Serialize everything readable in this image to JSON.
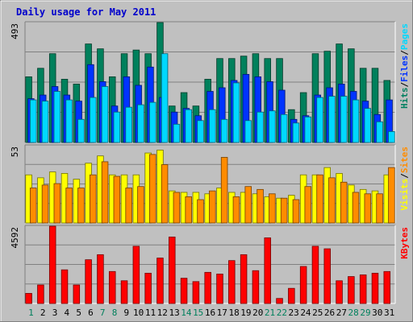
{
  "chart_data": {
    "type": "bar",
    "title": "Daily usage for May 2011",
    "categories": [
      "1",
      "2",
      "3",
      "4",
      "5",
      "6",
      "7",
      "8",
      "9",
      "10",
      "11",
      "12",
      "13",
      "14",
      "15",
      "16",
      "17",
      "18",
      "19",
      "20",
      "21",
      "22",
      "23",
      "24",
      "25",
      "26",
      "27",
      "28",
      "29",
      "30",
      "31"
    ],
    "weekend_days": [
      1,
      7,
      8,
      14,
      15,
      21,
      22,
      28,
      29
    ],
    "panels": [
      {
        "name": "top",
        "max_label": "493",
        "ylim": [
          0,
          493
        ],
        "axis_label_parts": [
          "Pages",
          "/",
          "Files",
          "/",
          "Hits"
        ],
        "axis_label_colors": [
          "#00d8ff",
          "#000000",
          "#0033ff",
          "#000000",
          "#008060"
        ],
        "series": [
          {
            "name": "Hits",
            "color": "#00805c",
            "values": [
              270,
              305,
              365,
              260,
              240,
              405,
              385,
              270,
              365,
              380,
              365,
              493,
              150,
              205,
              150,
              260,
              345,
              345,
              355,
              365,
              345,
              345,
              135,
              205,
              365,
              375,
              405,
              385,
              305,
              305,
              255
            ]
          },
          {
            "name": "Files",
            "color": "#0033ff",
            "values": [
              180,
              195,
              230,
              195,
              170,
              320,
              250,
              150,
              270,
              235,
              310,
              185,
              125,
              140,
              110,
              210,
              225,
              255,
              280,
              270,
              250,
              215,
              95,
              110,
              195,
              225,
              240,
              210,
              170,
              115,
              175
            ]
          },
          {
            "name": "Pages",
            "color": "#00d8ff",
            "values": [
              175,
              170,
              210,
              175,
              95,
              185,
              230,
              125,
              145,
              155,
              165,
              365,
              75,
              135,
              90,
              135,
              95,
              245,
              90,
              125,
              130,
              115,
              80,
              105,
              185,
              190,
              190,
              175,
              140,
              85,
              45
            ]
          }
        ]
      },
      {
        "name": "middle",
        "max_label": "53",
        "ylim": [
          0,
          53
        ],
        "axis_label_parts": [
          "Sites",
          "/",
          "Visits"
        ],
        "axis_label_colors": [
          "#ff8c00",
          "#000000",
          "#ffff00"
        ],
        "series": [
          {
            "name": "Visits",
            "color": "#ffff00",
            "values": [
              33,
              31,
              35,
              34,
              30,
              41,
              46,
              33,
              33,
              33,
              48,
              50,
              22,
              21,
              21,
              20,
              24,
              21,
              21,
              20,
              18,
              17,
              19,
              33,
              33,
              38,
              34,
              26,
              23,
              22,
              33
            ]
          },
          {
            "name": "Sites",
            "color": "#ff8c00",
            "values": [
              24,
              26,
              27,
              24,
              24,
              33,
              42,
              32,
              24,
              25,
              47,
              40,
              21,
              18,
              16,
              22,
              45,
              18,
              25,
              23,
              20,
              17,
              16,
              25,
              33,
              31,
              28,
              21,
              20,
              20,
              38
            ]
          }
        ]
      },
      {
        "name": "bottom",
        "max_label": "4592",
        "ylim": [
          0,
          4592
        ],
        "axis_label_parts": [
          "KBytes"
        ],
        "axis_label_colors": [
          "#ff0000"
        ],
        "series": [
          {
            "name": "KBytes",
            "color": "#ff0000",
            "values": [
              600,
              1100,
              4592,
              2000,
              1100,
              2600,
              2900,
              1900,
              1350,
              3400,
              1800,
              2700,
              3950,
              1500,
              1300,
              1850,
              1750,
              2550,
              2900,
              1950,
              3900,
              300,
              900,
              2200,
              3400,
              3250,
              1350,
              1600,
              1700,
              1800,
              1900
            ]
          }
        ]
      }
    ]
  }
}
